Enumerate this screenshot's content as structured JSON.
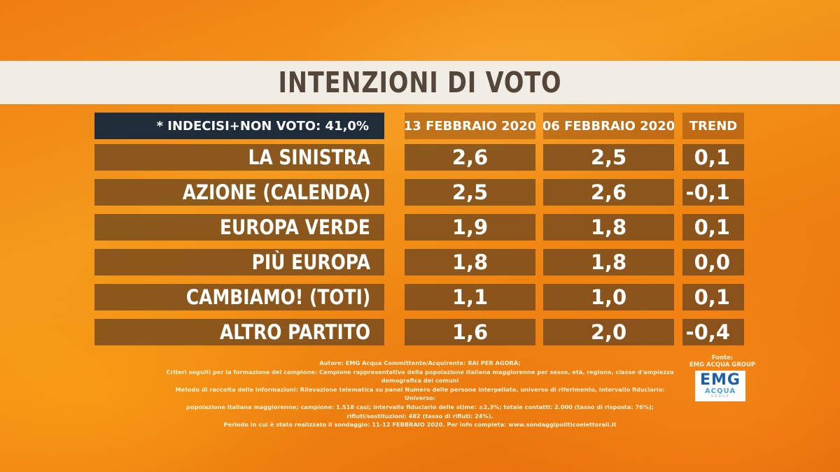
{
  "title": "INTENZIONI DI VOTO",
  "note": "* INDECISI+NON VOTO: 41,0%",
  "chart_data": {
    "type": "table",
    "columns": [
      "13 FEBBRAIO 2020",
      "06 FEBBRAIO 2020",
      "TREND"
    ],
    "rows": [
      {
        "label": "LA SINISTRA",
        "v1": "2,6",
        "v2": "2,5",
        "trend": "0,1"
      },
      {
        "label": "AZIONE (CALENDA)",
        "v1": "2,5",
        "v2": "2,6",
        "trend": "-0,1"
      },
      {
        "label": "EUROPA VERDE",
        "v1": "1,9",
        "v2": "1,8",
        "trend": "0,1"
      },
      {
        "label": "PIÙ EUROPA",
        "v1": "1,8",
        "v2": "1,8",
        "trend": "0,0"
      },
      {
        "label": "CAMBIAMO! (TOTI)",
        "v1": "1,1",
        "v2": "1,0",
        "trend": "0,1"
      },
      {
        "label": "ALTRO PARTITO",
        "v1": "1,6",
        "v2": "2,0",
        "trend": "-0,4"
      }
    ]
  },
  "footnote": [
    "Autore: EMG Acqua Committente/Acquirente: RAI PER AGORÀ;",
    "Criteri seguiti per la formazione del campione: Campione rappresentativo della popolazione italiana maggiorenne per sesso, età, regione, classe d'ampiezza demografica dei comuni",
    "Metodo di raccolta delle informazioni: Rilevazione telematica su panel Numero delle persone interpellate, universo di riferimento, intervallo fiduciario: Universo:",
    "popolazione italiana maggiorenne; campione: 1.518 casi; intervallo fiduciario delle stime: ±2,3%; totale contatti: 2.000 (tasso di risposta: 76%); rifiuti/sostituzioni: 482 (tasso di rifiuti: 24%).",
    "Periodo in cui è stato realizzato il sondaggio: 11-12 FEBBRAIO 2020. Per info completa: www.sondaggipoliticoelettorali.it"
  ],
  "source": {
    "label_line1": "Fonte:",
    "label_line2": "EMG ACQUA GROUP",
    "logo_text_1": "EMG",
    "logo_text_2": "ACQUA",
    "logo_text_3": "GROUP"
  }
}
